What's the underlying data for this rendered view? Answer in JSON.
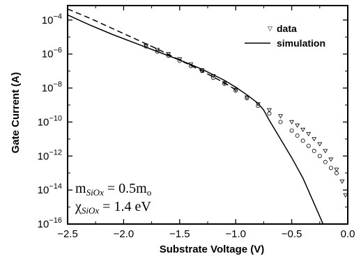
{
  "chart_data": {
    "type": "scatter",
    "title": "",
    "xlabel": "Substrate Voltage (V)",
    "ylabel": "Gate Current (A)",
    "xlim": [
      -2.5,
      0.0
    ],
    "ylim_log10": [
      -16,
      -3.15
    ],
    "y_scale": "log",
    "grid": false,
    "legend_position": "top-right",
    "x_ticks": [
      -2.5,
      -2.0,
      -1.5,
      -1.0,
      -0.5,
      0.0
    ],
    "x_tick_labels": [
      "−2.5",
      "−2.0",
      "−1.5",
      "−1.0",
      "−0.5",
      "0.0"
    ],
    "y_ticks": [
      {
        "exp": -4,
        "base": "10",
        "sup": "-4"
      },
      {
        "exp": -6,
        "base": "10",
        "sup": "-6"
      },
      {
        "exp": -8,
        "base": "10",
        "sup": "-8"
      },
      {
        "exp": -10,
        "base": "10",
        "sup": "-10"
      },
      {
        "exp": -12,
        "base": "10",
        "sup": "-12"
      },
      {
        "exp": -14,
        "base": "10",
        "sup": "-14"
      },
      {
        "exp": -16,
        "base": "10",
        "sup": "-16"
      }
    ],
    "series": [
      {
        "name": "data",
        "kind": "markers",
        "marker": "triangle-down",
        "x": [
          -1.8,
          -1.7,
          -1.6,
          -1.5,
          -1.4,
          -1.3,
          -1.2,
          -1.1,
          -1.0,
          -0.9,
          -0.8,
          -0.7,
          -0.6,
          -0.5,
          -0.45,
          -0.4,
          -0.35,
          -0.3,
          -0.25,
          -0.2,
          -0.15,
          -0.1,
          -0.05,
          -0.02
        ],
        "log10_y": [
          -5.5,
          -5.75,
          -6.0,
          -6.3,
          -6.6,
          -6.95,
          -7.3,
          -7.7,
          -8.1,
          -8.55,
          -8.95,
          -9.3,
          -9.65,
          -10.0,
          -10.2,
          -10.45,
          -10.7,
          -11.0,
          -11.3,
          -11.7,
          -12.2,
          -12.8,
          -13.5,
          -14.3
        ]
      },
      {
        "name": "",
        "kind": "markers",
        "marker": "circle",
        "x": [
          -1.8,
          -1.7,
          -1.6,
          -1.5,
          -1.4,
          -1.3,
          -1.2,
          -1.1,
          -1.0,
          -0.9,
          -0.8,
          -0.7,
          -0.6,
          -0.5,
          -0.45,
          -0.4,
          -0.35,
          -0.3,
          -0.25,
          -0.2,
          -0.15,
          -0.1
        ],
        "log10_y": [
          -5.55,
          -5.85,
          -6.1,
          -6.4,
          -6.7,
          -7.0,
          -7.4,
          -7.75,
          -8.15,
          -8.6,
          -9.05,
          -9.5,
          -10.0,
          -10.5,
          -10.8,
          -11.1,
          -11.4,
          -11.7,
          -12.0,
          -12.35,
          -12.7,
          -13.0
        ]
      },
      {
        "name": "",
        "kind": "dashed-line",
        "x": [
          -2.5,
          -2.3,
          -2.1,
          -1.9,
          -1.7,
          -1.5,
          -1.3,
          -1.1,
          -1.0
        ],
        "log10_y": [
          -3.35,
          -3.9,
          -4.5,
          -5.1,
          -5.7,
          -6.35,
          -7.0,
          -7.7,
          -8.1
        ]
      },
      {
        "name": "simulation",
        "kind": "solid-line",
        "x": [
          -2.5,
          -2.3,
          -2.1,
          -1.9,
          -1.7,
          -1.5,
          -1.3,
          -1.1,
          -1.0,
          -0.9,
          -0.8,
          -0.75,
          -0.7,
          -0.6,
          -0.5,
          -0.4,
          -0.3,
          -0.22
        ],
        "log10_y": [
          -3.7,
          -4.3,
          -4.85,
          -5.35,
          -5.85,
          -6.35,
          -6.9,
          -7.55,
          -7.95,
          -8.4,
          -8.9,
          -9.3,
          -9.9,
          -11.0,
          -12.1,
          -13.3,
          -14.8,
          -16.0
        ]
      }
    ],
    "annotation": {
      "line1_main": "m",
      "line1_sub": "SiOx",
      "line1_rest": " = 0.5m",
      "line1_sub2": "o",
      "line2_main": "χ",
      "line2_sub": "SiOx",
      "line2_rest": " = 1.4 eV"
    }
  }
}
